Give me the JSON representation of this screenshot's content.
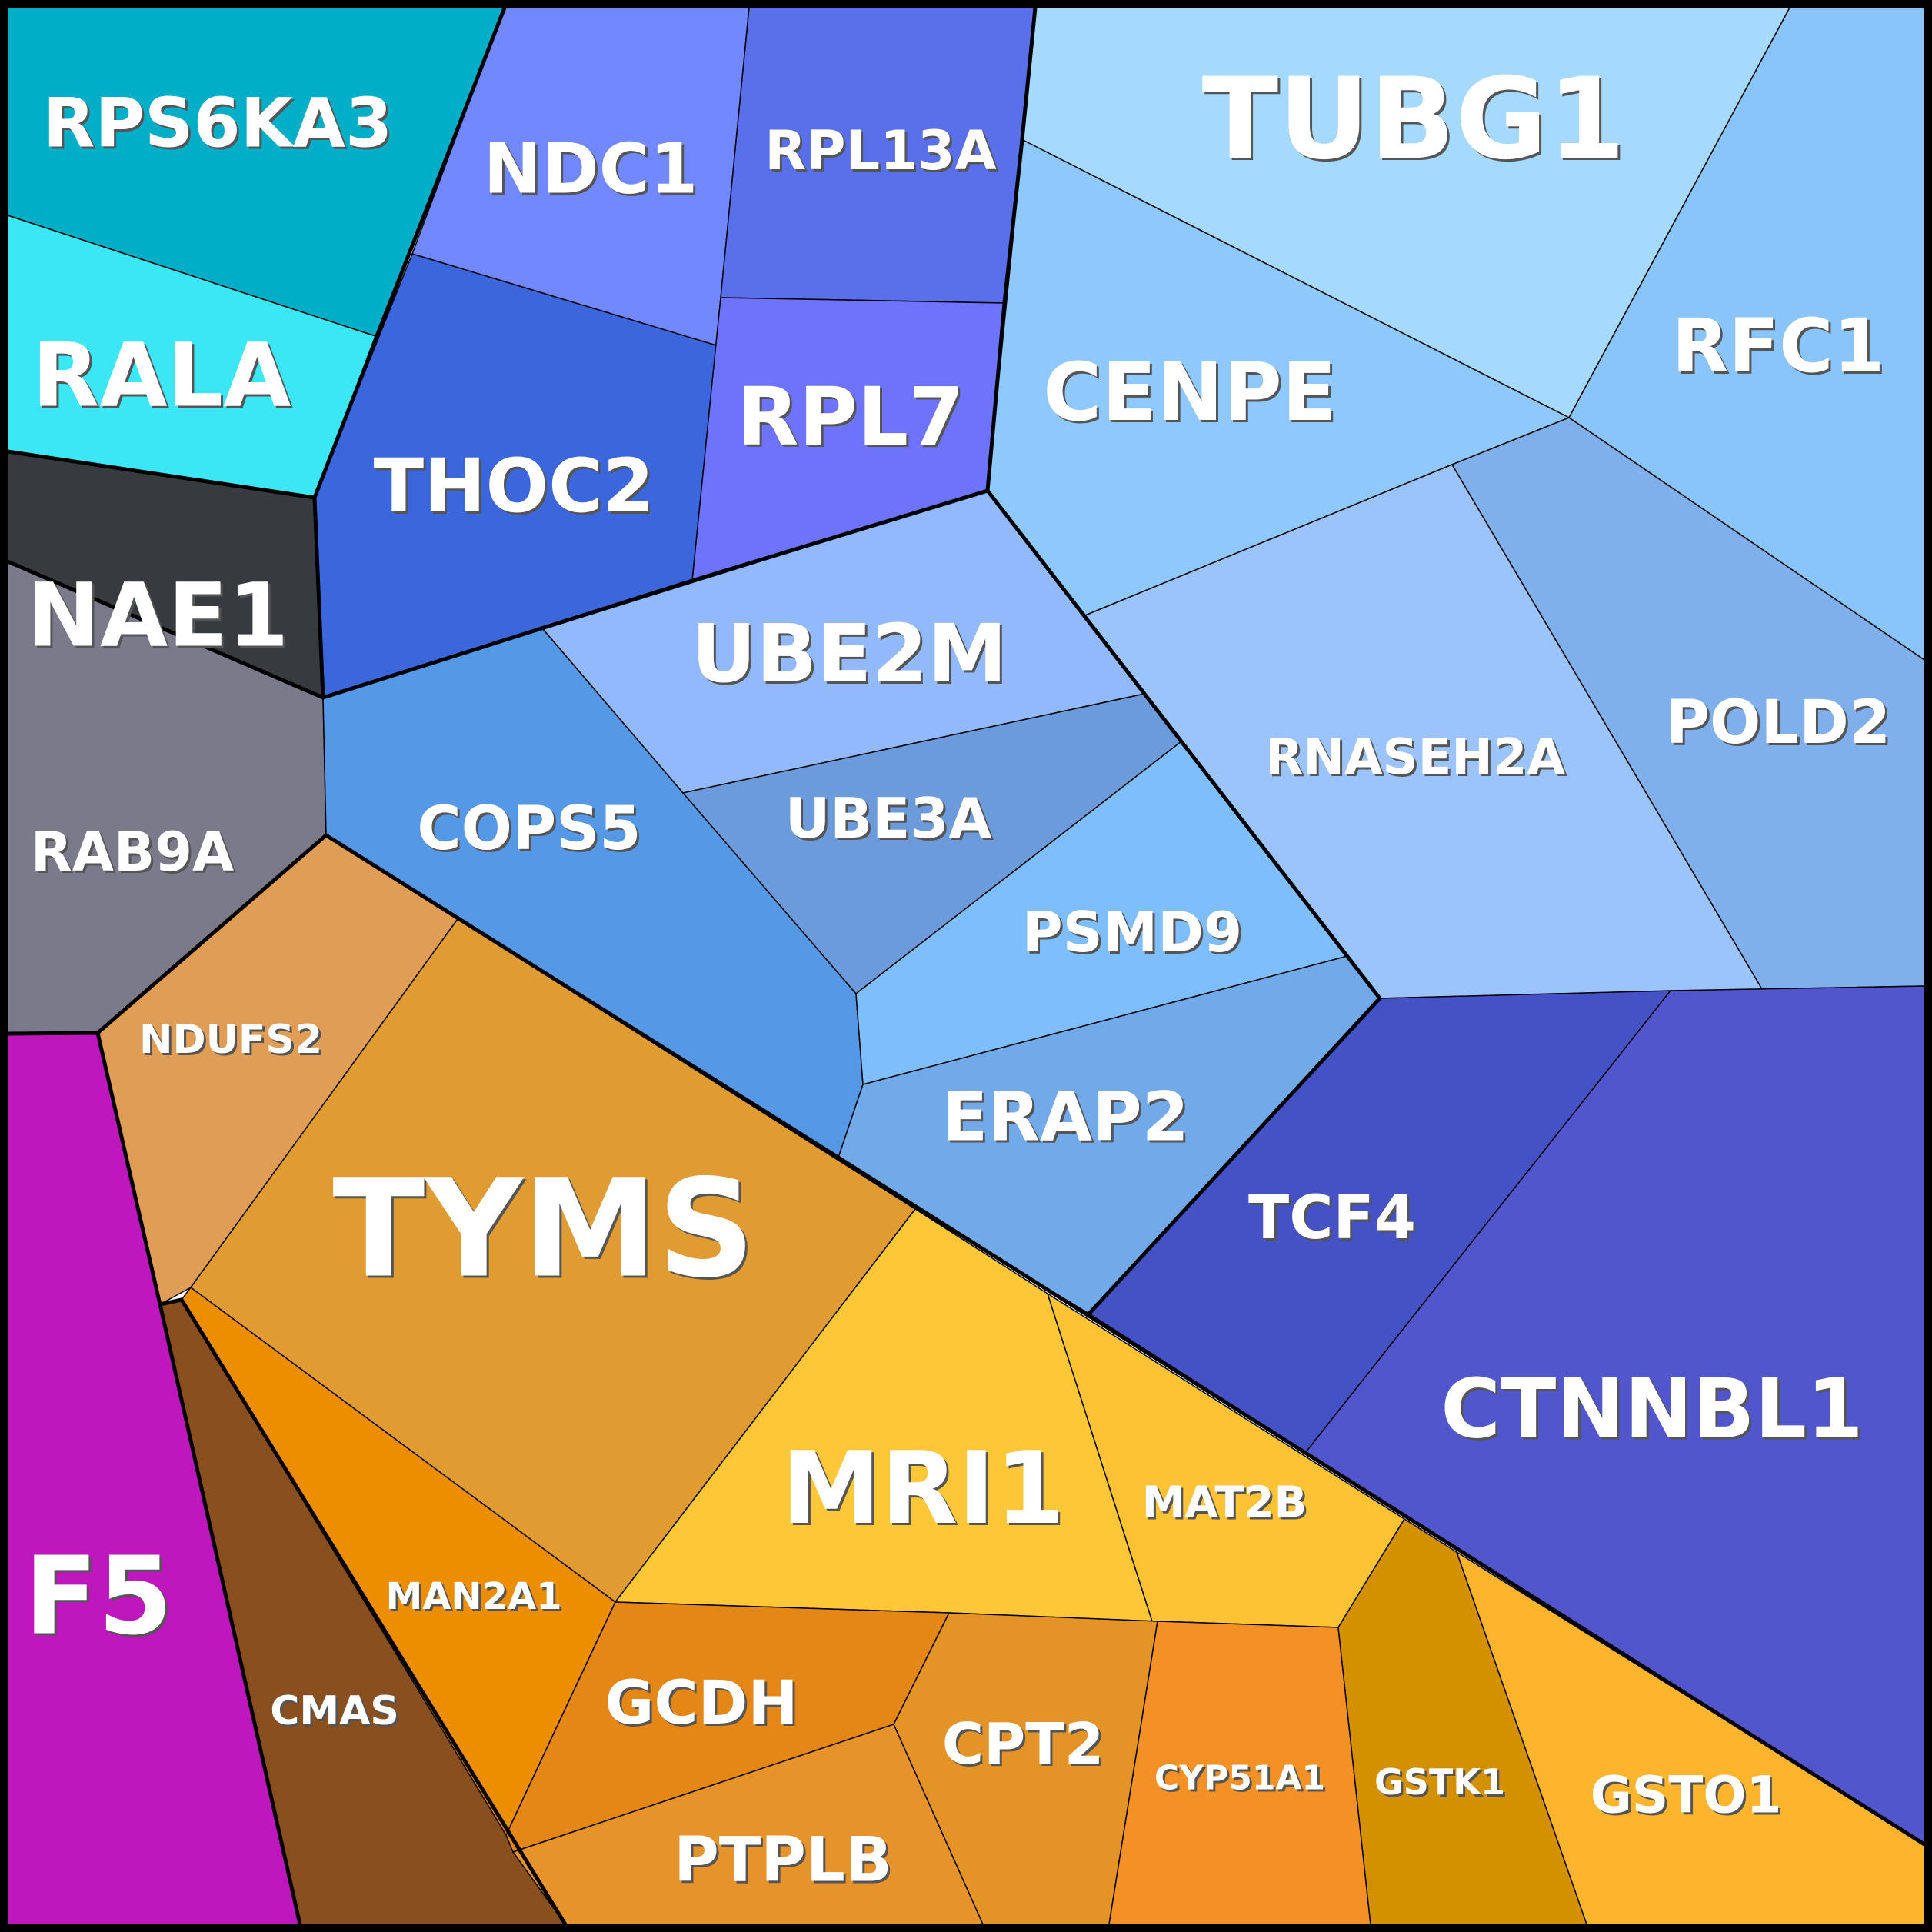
{
  "cells": [
    {
      "id": "rps6ka3",
      "label": "RPS6KA3",
      "color": "#00AEC7"
    },
    {
      "id": "rala",
      "label": "RALA",
      "color": "#3BE7F4"
    },
    {
      "id": "nae1",
      "label": "NAE1",
      "color": "#373A3F"
    },
    {
      "id": "rab9a",
      "label": "RAB9A",
      "color": "#7B7A8B"
    },
    {
      "id": "f5",
      "label": "F5",
      "color": "#BE17BE"
    },
    {
      "id": "ndc1",
      "label": "NDC1",
      "color": "#7188FF"
    },
    {
      "id": "rpl13a",
      "label": "RPL13A",
      "color": "#5A6FEA"
    },
    {
      "id": "thoc2",
      "label": "THOC2",
      "color": "#3C67DC"
    },
    {
      "id": "rpl7",
      "label": "RPL7",
      "color": "#6E73FC"
    },
    {
      "id": "tubg1",
      "label": "TUBG1",
      "color": "#A5D9FE"
    },
    {
      "id": "cenpe",
      "label": "CENPE",
      "color": "#8FC8FD"
    },
    {
      "id": "rfc1",
      "label": "RFC1",
      "color": "#89C4FB"
    },
    {
      "id": "ube2m",
      "label": "UBE2M",
      "color": "#91B9FC"
    },
    {
      "id": "rnaseh2a",
      "label": "RNASEH2A",
      "color": "#9BC3FC"
    },
    {
      "id": "pold2",
      "label": "POLD2",
      "color": "#7FB0EC"
    },
    {
      "id": "cops5",
      "label": "COPS5",
      "color": "#5598E5"
    },
    {
      "id": "ube3a",
      "label": "UBE3A",
      "color": "#6B9BDA"
    },
    {
      "id": "psmd9",
      "label": "PSMD9",
      "color": "#7FBEFC"
    },
    {
      "id": "erap2",
      "label": "ERAP2",
      "color": "#72A9E9"
    },
    {
      "id": "tcf4",
      "label": "TCF4",
      "color": "#4552C6"
    },
    {
      "id": "ctnnbl1",
      "label": "CTNNBL1",
      "color": "#5256CC"
    },
    {
      "id": "ndufs2",
      "label": "NDUFS2",
      "color": "#DF9D55"
    },
    {
      "id": "tyms",
      "label": "TYMS",
      "color": "#E09C33"
    },
    {
      "id": "man2a1",
      "label": "MAN2A1",
      "color": "#ED8D00"
    },
    {
      "id": "cmas",
      "label": "CMAS",
      "color": "#8A4F1F"
    },
    {
      "id": "mri1",
      "label": "MRI1",
      "color": "#FEC738"
    },
    {
      "id": "mat2b",
      "label": "MAT2B",
      "color": "#FEC335"
    },
    {
      "id": "gcdh",
      "label": "GCDH",
      "color": "#E48716"
    },
    {
      "id": "ptplb",
      "label": "PTPLB",
      "color": "#E6932C"
    },
    {
      "id": "cpt2",
      "label": "CPT2",
      "color": "#E49326"
    },
    {
      "id": "cyp51a1",
      "label": "CYP51A1",
      "color": "#F39026"
    },
    {
      "id": "gstk1",
      "label": "GSTK1",
      "color": "#D39100"
    },
    {
      "id": "gsto1",
      "label": "GSTO1",
      "color": "#FEB42C"
    }
  ]
}
